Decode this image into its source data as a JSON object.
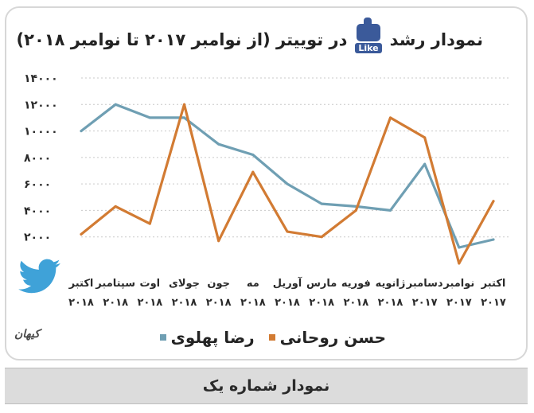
{
  "title_prefix": "نمودار رشد",
  "title_suffix": "در توییتر (از نوامبر ۲۰۱۷ تا نوامبر ۲۰۱۸)",
  "like_text": "Like",
  "logo_text": "کیهان",
  "caption": "نمودار شماره یک",
  "chart_data": {
    "type": "line",
    "categories": [
      [
        "اکتبر",
        "۲۰۱۷"
      ],
      [
        "نوامبر",
        "۲۰۱۷"
      ],
      [
        "دسامبر",
        "۲۰۱۷"
      ],
      [
        "ژانویه",
        "۲۰۱۸"
      ],
      [
        "فوریه",
        "۲۰۱۸"
      ],
      [
        "مارس",
        "۲۰۱۸"
      ],
      [
        "آوریل",
        "۲۰۱۸"
      ],
      [
        "مه",
        "۲۰۱۸"
      ],
      [
        "جون",
        "۲۰۱۸"
      ],
      [
        "جولای",
        "۲۰۱۸"
      ],
      [
        "اوت",
        "۲۰۱۸"
      ],
      [
        "سپتامبر",
        "۲۰۱۸"
      ],
      [
        "اکتبر",
        "۲۰۱۸"
      ]
    ],
    "series": [
      {
        "name": "رضا پهلوی",
        "color": "#6f9fb3",
        "values": [
          1800,
          1200,
          7500,
          4000,
          4300,
          4500,
          6000,
          8200,
          9000,
          11000,
          11000,
          12000,
          10000
        ]
      },
      {
        "name": "حسن روحانی",
        "color": "#d27b33",
        "values": [
          4700,
          0,
          9500,
          11000,
          4000,
          2000,
          2400,
          6900,
          1700,
          12000,
          3000,
          4300,
          2200
        ]
      }
    ],
    "y_ticks": [
      "۱۴۰۰۰",
      "۱۲۰۰۰",
      "۱۰۰۰۰",
      "۸۰۰۰",
      "۶۰۰۰",
      "۴۰۰۰",
      "۲۰۰۰"
    ],
    "y_tick_values": [
      14000,
      12000,
      10000,
      8000,
      6000,
      4000,
      2000
    ],
    "ylim": [
      0,
      14000
    ],
    "grid": true,
    "legend": "bottom"
  }
}
